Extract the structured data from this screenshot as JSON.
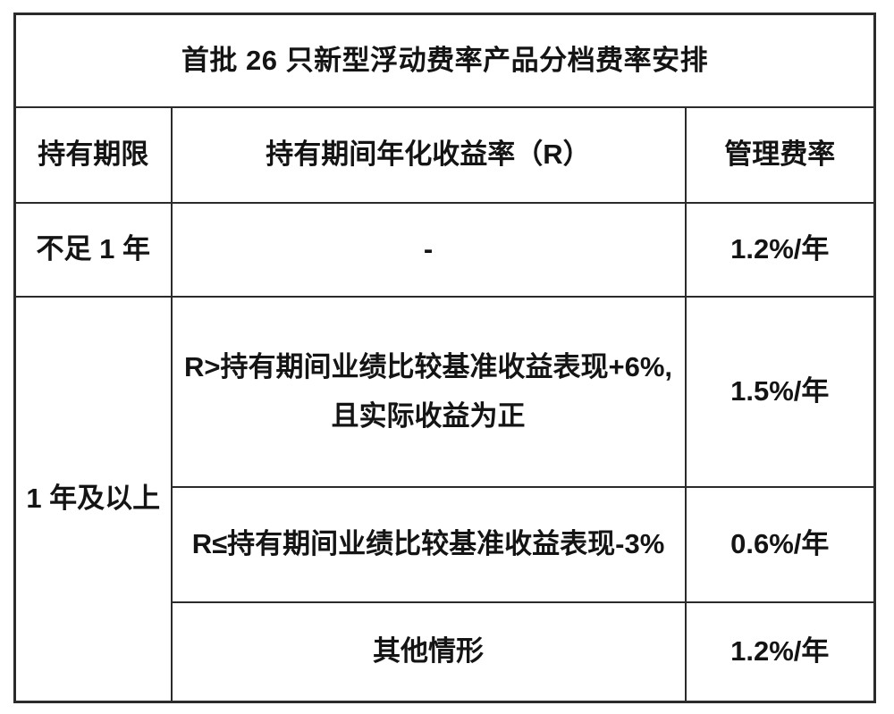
{
  "table": {
    "title": "首批 26 只新型浮动费率产品分档费率安排",
    "columns": [
      "持有期限",
      "持有期间年化收益率（R）",
      "管理费率"
    ],
    "rows": [
      {
        "period": "不足 1 年",
        "condition_lines": [
          "-"
        ],
        "fee": "1.2%/年"
      },
      {
        "period": "1 年及以上",
        "condition_lines": [
          "R>持有期间业绩比较基准收益表现+6%,",
          "且实际收益为正"
        ],
        "fee": "1.5%/年"
      },
      {
        "condition_lines": [
          "R≤持有期间业绩比较基准收益表现-3%"
        ],
        "fee": "0.6%/年"
      },
      {
        "condition_lines": [
          "其他情形"
        ],
        "fee": "1.2%/年"
      }
    ]
  },
  "colors": {
    "background": "#ffffff",
    "border": "#2b2b2b",
    "text": "#141414"
  },
  "chart_data": {
    "type": "table",
    "title": "首批 26 只新型浮动费率产品分档费率安排",
    "columns": [
      "持有期限",
      "持有期间年化收益率（R）",
      "管理费率"
    ],
    "rows": [
      [
        "不足 1 年",
        "-",
        "1.2%/年"
      ],
      [
        "1 年及以上",
        "R>持有期间业绩比较基准收益表现+6%,且实际收益为正",
        "1.5%/年"
      ],
      [
        "1 年及以上",
        "R≤持有期间业绩比较基准收益表现-3%",
        "0.6%/年"
      ],
      [
        "1 年及以上",
        "其他情形",
        "1.2%/年"
      ]
    ],
    "merged_cells": [
      {
        "column": 0,
        "row_start": 1,
        "row_end": 3,
        "value": "1 年及以上"
      }
    ],
    "layout": {
      "grid": true,
      "header_row": true,
      "title_row_merged": true
    }
  }
}
